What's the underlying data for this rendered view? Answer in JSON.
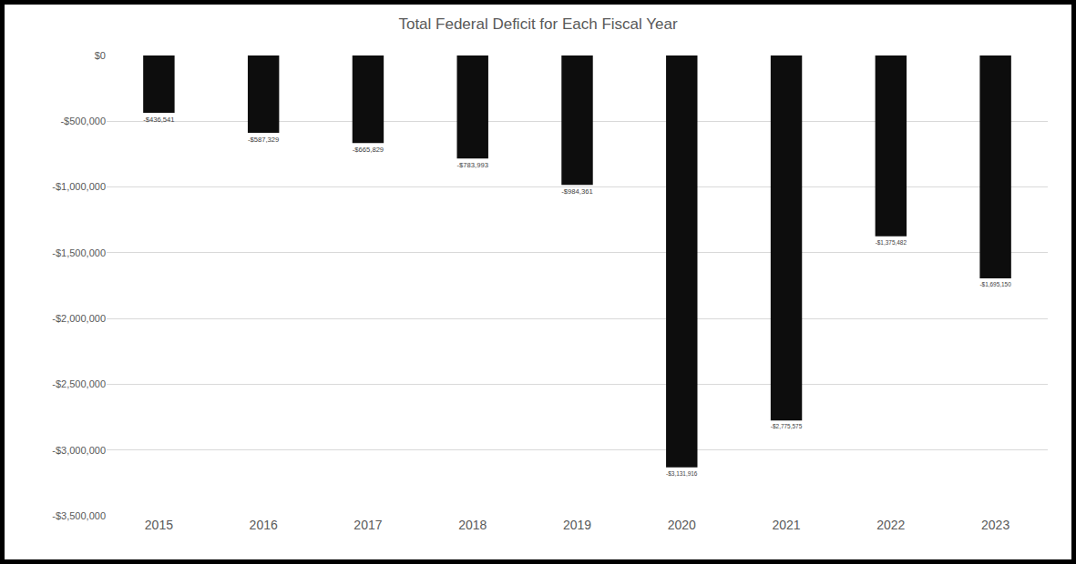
{
  "chart_data": {
    "type": "bar",
    "title": "Total Federal Deficit for Each Fiscal Year",
    "categories": [
      "2015",
      "2016",
      "2017",
      "2018",
      "2019",
      "2020",
      "2021",
      "2022",
      "2023"
    ],
    "values": [
      -436541,
      -587329,
      -665829,
      -783993,
      -984361,
      -3131916,
      -2775575,
      -1375482,
      -1695150
    ],
    "value_labels": [
      "-$436,541",
      "-$587,329",
      "-$665,829",
      "-$783,993",
      "-$984,361",
      "-$3,131,916",
      "-$2,775,575",
      "-$1,375,482",
      "-$1,695,150"
    ],
    "color": "#0d0d0d",
    "data_labels": true,
    "ylim": [
      -3500000,
      0
    ],
    "yticks": [
      {
        "value": 0,
        "label": "$0"
      },
      {
        "value": -500000,
        "label": "-$500,000"
      },
      {
        "value": -1000000,
        "label": "-$1,000,000"
      },
      {
        "value": -1500000,
        "label": "-$1,500,000"
      },
      {
        "value": -2000000,
        "label": "-$2,000,000"
      },
      {
        "value": -2500000,
        "label": "-$2,500,000"
      },
      {
        "value": -3000000,
        "label": "-$3,000,000"
      },
      {
        "value": -3500000,
        "label": "-$3,500,000"
      }
    ],
    "grid": true
  }
}
